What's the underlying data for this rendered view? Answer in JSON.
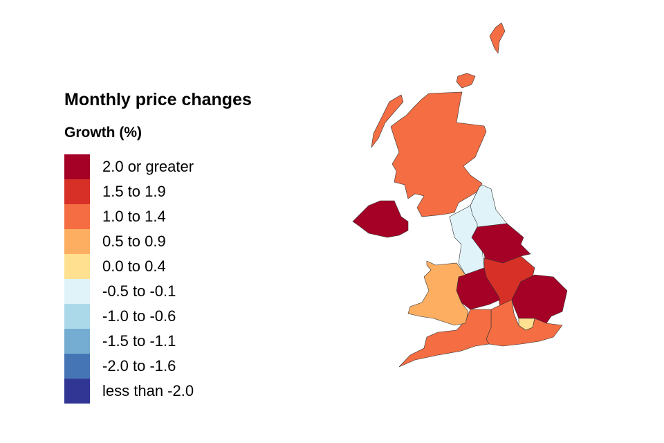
{
  "legend": {
    "title": "Monthly price changes",
    "subtitle": "Growth (%)",
    "items": [
      {
        "label": "2.0 or greater",
        "color": "#a50026"
      },
      {
        "label": "1.5 to 1.9",
        "color": "#d73027"
      },
      {
        "label": "1.0 to 1.4",
        "color": "#f46d43"
      },
      {
        "label": "0.5 to 0.9",
        "color": "#fdae61"
      },
      {
        "label": "0.0 to 0.4",
        "color": "#fee090"
      },
      {
        "label": "-0.5 to -0.1",
        "color": "#e0f3f8"
      },
      {
        "label": "-1.0 to -0.6",
        "color": "#abd9e9"
      },
      {
        "label": "-1.5 to -1.1",
        "color": "#74add1"
      },
      {
        "label": "-2.0 to -1.6",
        "color": "#4575b4"
      },
      {
        "label": "less than -2.0",
        "color": "#313695"
      }
    ]
  },
  "regions": [
    {
      "region": "Scotland",
      "band": "1.0 to 1.4"
    },
    {
      "region": "Northern Ireland",
      "band": "2.0 or greater"
    },
    {
      "region": "North East",
      "band": "-0.5 to -0.1"
    },
    {
      "region": "North West",
      "band": "-0.5 to -0.1"
    },
    {
      "region": "Yorkshire and The Humber",
      "band": "2.0 or greater"
    },
    {
      "region": "East Midlands",
      "band": "1.5 to 1.9"
    },
    {
      "region": "West Midlands",
      "band": "2.0 or greater"
    },
    {
      "region": "East of England",
      "band": "2.0 or greater"
    },
    {
      "region": "London",
      "band": "0.0 to 0.4"
    },
    {
      "region": "South East",
      "band": "1.0 to 1.4"
    },
    {
      "region": "South West",
      "band": "1.0 to 1.4"
    },
    {
      "region": "Wales",
      "band": "0.5 to 0.9"
    }
  ]
}
